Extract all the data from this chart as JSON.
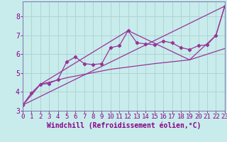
{
  "xlabel": "Windchill (Refroidissement éolien,°C)",
  "bg_color": "#c8ecec",
  "grid_color": "#b0d4d4",
  "line_color": "#993399",
  "xlim": [
    0,
    23
  ],
  "ylim": [
    3,
    8.8
  ],
  "yticks": [
    3,
    4,
    5,
    6,
    7,
    8
  ],
  "xticks": [
    0,
    1,
    2,
    3,
    4,
    5,
    6,
    7,
    8,
    9,
    10,
    11,
    12,
    13,
    14,
    15,
    16,
    17,
    18,
    19,
    20,
    21,
    22,
    23
  ],
  "main_x": [
    0,
    1,
    2,
    3,
    4,
    5,
    6,
    7,
    8,
    9,
    10,
    11,
    12,
    13,
    14,
    15,
    16,
    17,
    18,
    19,
    20,
    21,
    22,
    23
  ],
  "main_y": [
    3.3,
    3.95,
    4.4,
    4.45,
    4.65,
    5.6,
    5.85,
    5.5,
    5.45,
    5.5,
    6.35,
    6.45,
    7.25,
    6.6,
    6.55,
    6.5,
    6.7,
    6.6,
    6.35,
    6.25,
    6.45,
    6.5,
    7.0,
    8.55
  ],
  "upper_x": [
    0,
    2,
    12,
    19,
    22,
    23
  ],
  "upper_y": [
    3.3,
    4.4,
    7.25,
    5.7,
    7.0,
    8.55
  ],
  "lower_curve_x": [
    0,
    2,
    5,
    10,
    15,
    19,
    23
  ],
  "lower_curve_y": [
    3.3,
    4.4,
    4.75,
    5.2,
    5.5,
    5.7,
    6.3
  ],
  "trend_x": [
    0,
    23
  ],
  "trend_y": [
    3.3,
    8.55
  ],
  "font_color": "#880088",
  "tick_fontsize": 6.5,
  "label_fontsize": 7
}
